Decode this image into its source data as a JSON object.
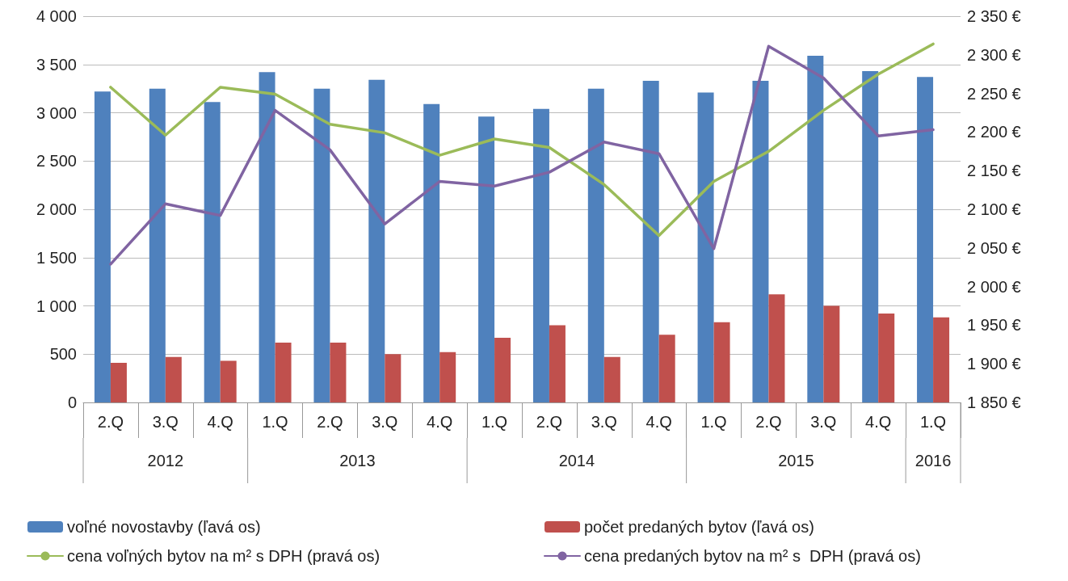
{
  "chart_data": {
    "type": "bar",
    "categories": [
      "2.Q",
      "3.Q",
      "4.Q",
      "1.Q",
      "2.Q",
      "3.Q",
      "4.Q",
      "1.Q",
      "2.Q",
      "3.Q",
      "4.Q",
      "1.Q",
      "2.Q",
      "3.Q",
      "4.Q",
      "1.Q"
    ],
    "series": [
      {
        "name": "voľné novostavby (ľavá os)",
        "color": "#4f81bd",
        "values": [
          3220,
          3250,
          3110,
          3420,
          3250,
          3340,
          3090,
          2960,
          3040,
          3250,
          3330,
          3210,
          3330,
          3590,
          3430,
          3370
        ]
      },
      {
        "name": "počet predaných bytov (ľavá os)",
        "color": "#c0504d",
        "values": [
          410,
          470,
          430,
          620,
          620,
          500,
          520,
          670,
          800,
          470,
          700,
          830,
          1120,
          1000,
          920,
          880
        ]
      },
      {
        "name": "cena voľných bytov na m² s DPH (pravá os)",
        "type": "line",
        "axis": "y2",
        "color": "#9bbb59",
        "values": [
          2258,
          2196,
          2258,
          2249,
          2210,
          2199,
          2170,
          2191,
          2180,
          2132,
          2066,
          2136,
          2175,
          2228,
          2275,
          2314
        ]
      },
      {
        "name": "cena predaných bytov na m² s  DPH (pravá os)",
        "type": "line",
        "axis": "y2",
        "color": "#8064a2",
        "values": [
          2029,
          2107,
          2092,
          2228,
          2177,
          2081,
          2136,
          2130,
          2148,
          2187,
          2172,
          2049,
          2311,
          2270,
          2195,
          2203
        ]
      }
    ],
    "ylim": [
      0,
      4000
    ],
    "yticks": [
      {
        "value": 0,
        "label": "0"
      },
      {
        "value": 500,
        "label": "500"
      },
      {
        "value": 1000,
        "label": "1 000"
      },
      {
        "value": 1500,
        "label": "1 500"
      },
      {
        "value": 2000,
        "label": "2 000"
      },
      {
        "value": 2500,
        "label": "2 500"
      },
      {
        "value": 3000,
        "label": "3 000"
      },
      {
        "value": 3500,
        "label": "3 500"
      },
      {
        "value": 4000,
        "label": "4 000"
      }
    ],
    "y2lim": [
      1850,
      2350
    ],
    "y2ticks": [
      {
        "value": 1850,
        "label": "1 850 €"
      },
      {
        "value": 1900,
        "label": "1 900 €"
      },
      {
        "value": 1950,
        "label": "1 950 €"
      },
      {
        "value": 2000,
        "label": "2 000 €"
      },
      {
        "value": 2050,
        "label": "2 050 €"
      },
      {
        "value": 2100,
        "label": "2 100 €"
      },
      {
        "value": 2150,
        "label": "2 150 €"
      },
      {
        "value": 2200,
        "label": "2 200 €"
      },
      {
        "value": 2250,
        "label": "2 250 €"
      },
      {
        "value": 2300,
        "label": "2 300 €"
      },
      {
        "value": 2350,
        "label": "2 350 €"
      }
    ],
    "annotations": [
      "2012",
      "2013",
      "2014",
      "2015",
      "2016"
    ],
    "grid": "y",
    "legend": "bottom",
    "marker": "none",
    "line_style": "solid"
  }
}
